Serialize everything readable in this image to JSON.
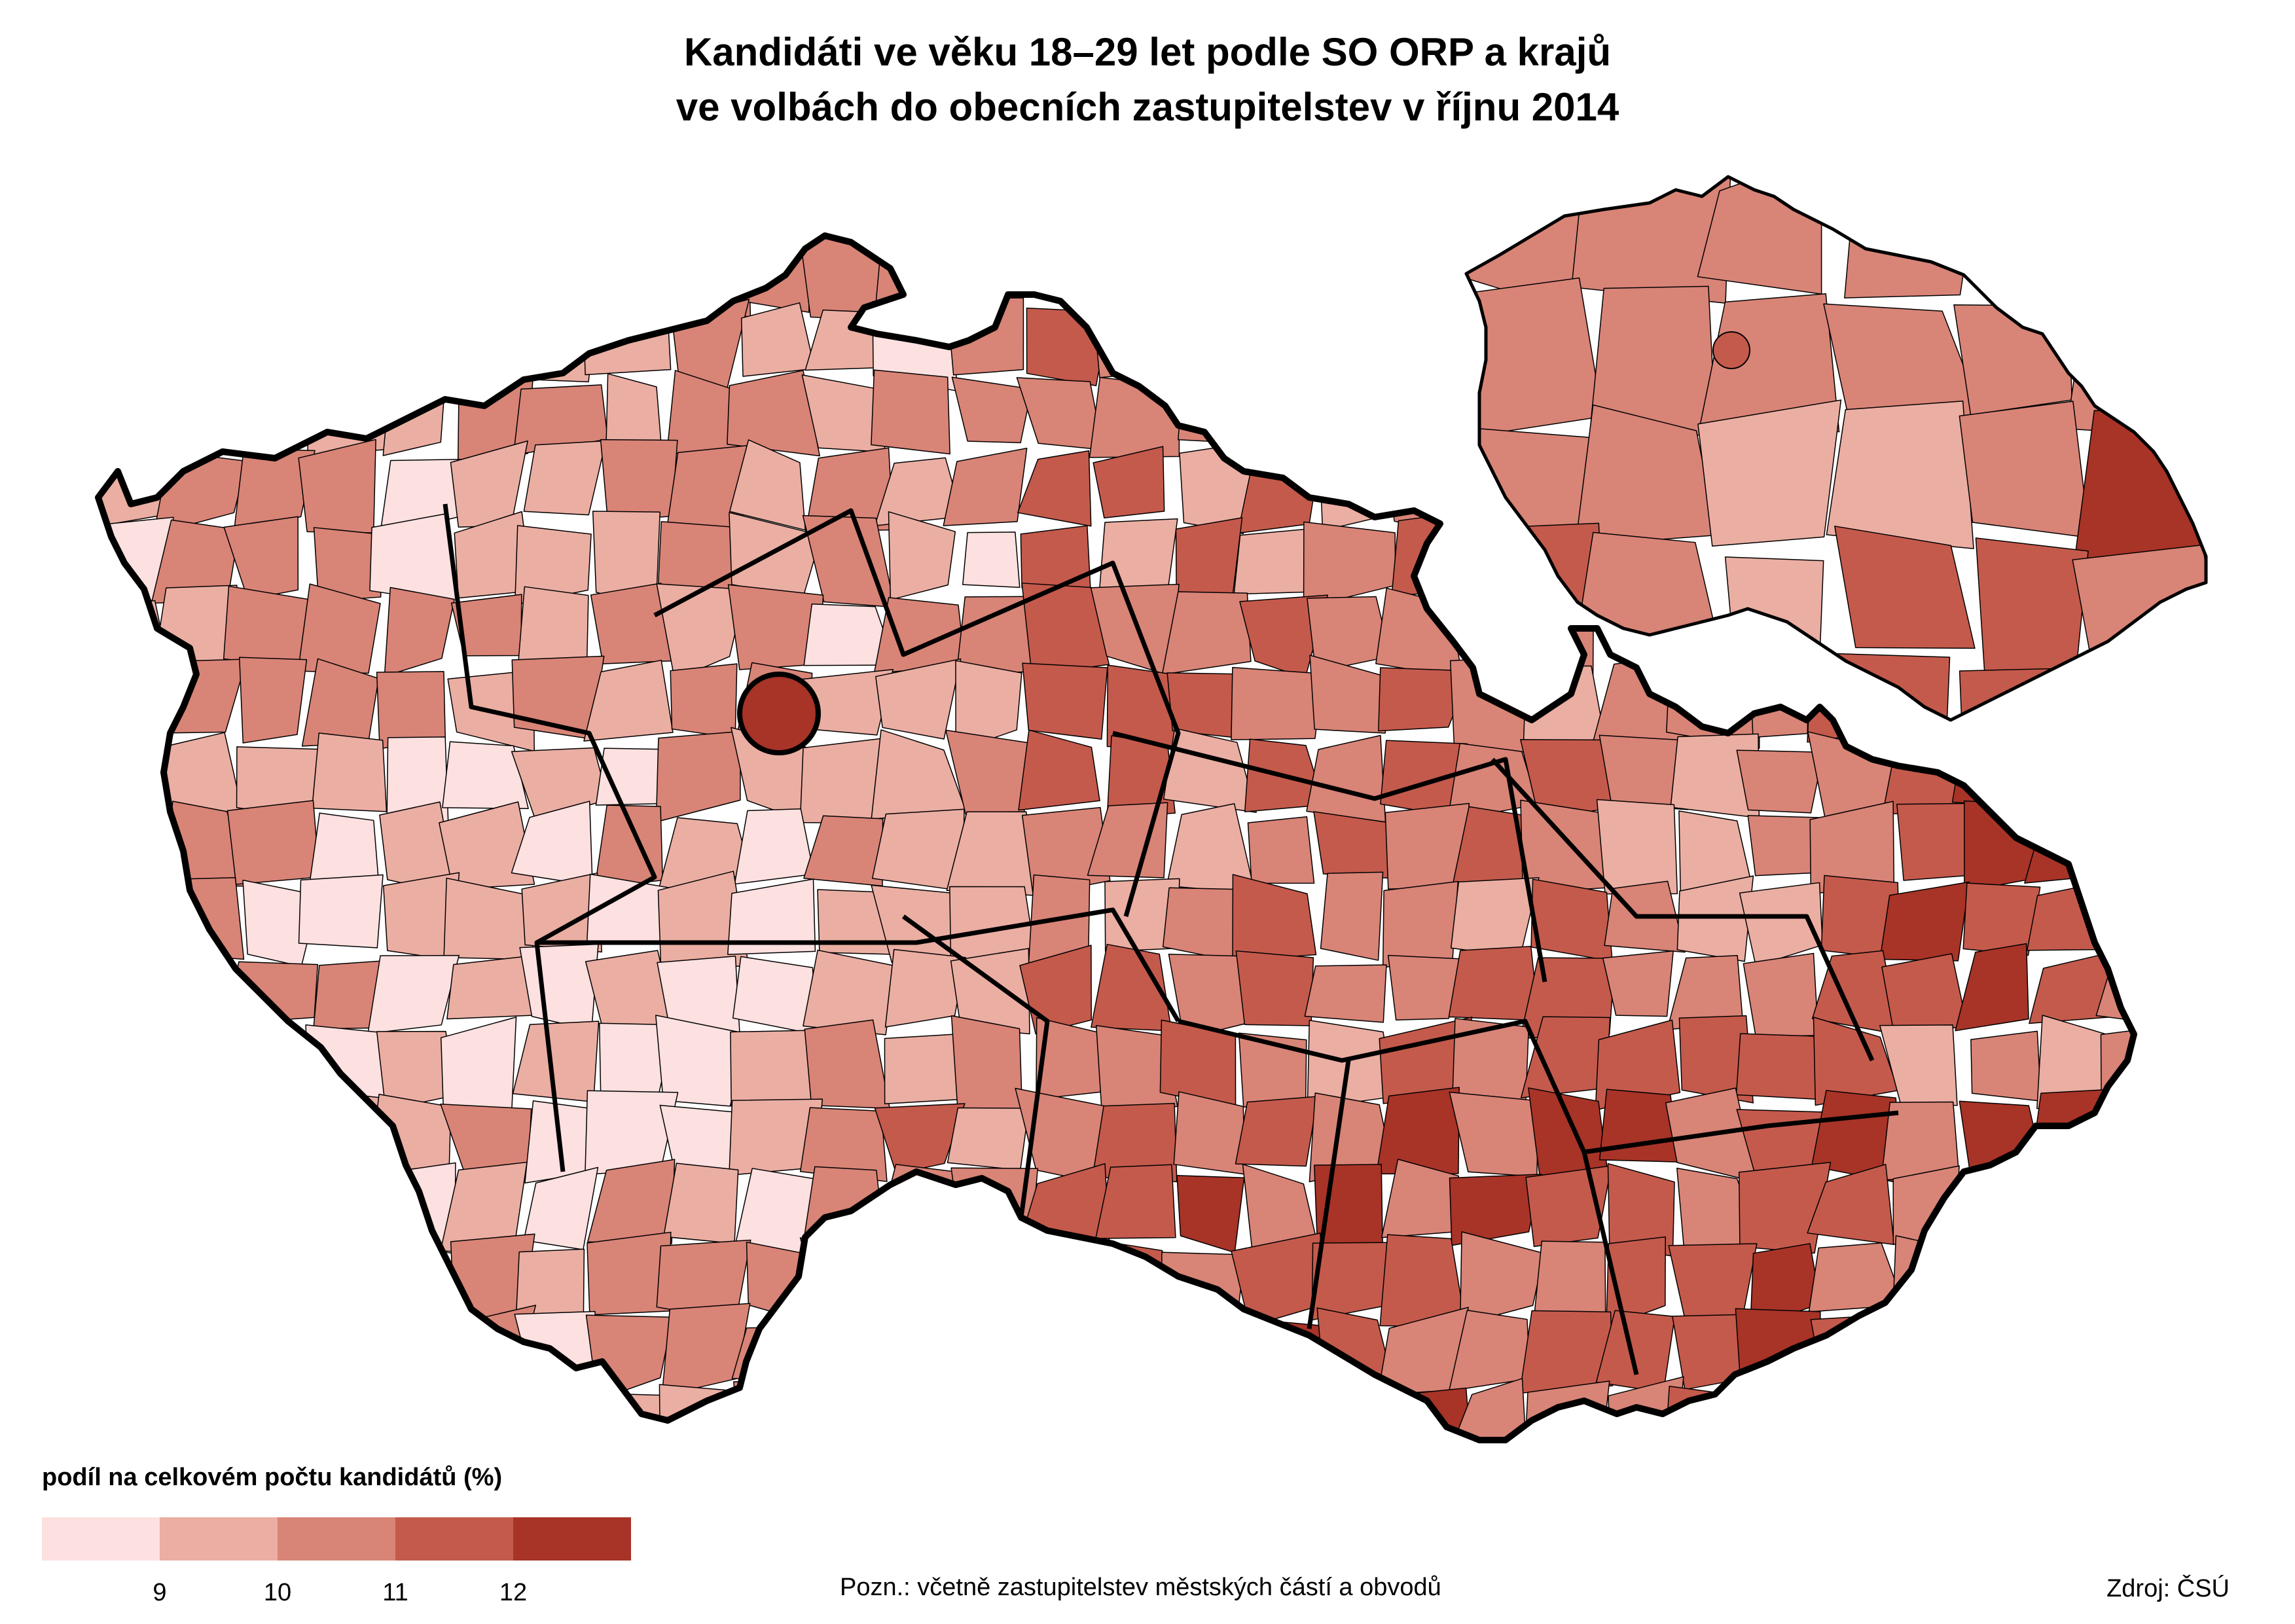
{
  "title": {
    "line1": "Kandidáti ve věku 18–29 let podle SO ORP a krajů",
    "line2": "ve volbách do obecních zastupitelstev v říjnu 2014"
  },
  "legend": {
    "title": "podíl na celkovém počtu kandidátů (%)",
    "colors": [
      "#fde0e0",
      "#ebaea3",
      "#d88477",
      "#c45a4c",
      "#a83327"
    ],
    "ticks": [
      "9",
      "10",
      "11",
      "12"
    ]
  },
  "note": "Pozn.:  včetně zastupitelstev městských částí a obvodů",
  "source": "Zdroj: ČSÚ",
  "map": {
    "outline_color": "#000000",
    "inner_line_color": "#000000",
    "cz_land_color": "#d88477"
  }
}
